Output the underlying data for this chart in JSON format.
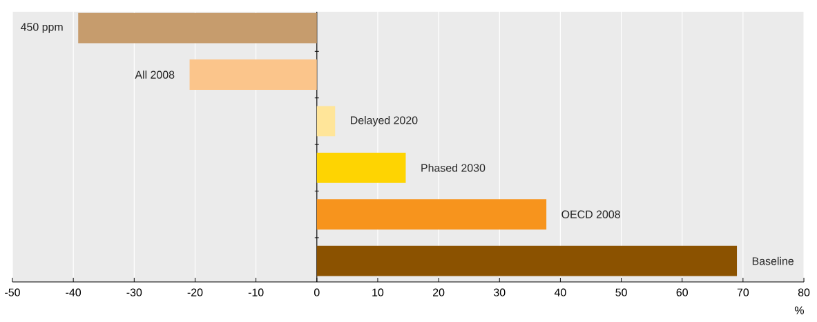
{
  "chart_data": {
    "type": "bar",
    "orientation": "horizontal",
    "xlabel": "%",
    "categories": [
      "450 ppm",
      "All 2008",
      "Delayed 2020",
      "Phased 2030",
      "OECD 2008",
      "Baseline"
    ],
    "values": [
      -39.2,
      -20.9,
      3.0,
      14.6,
      37.7,
      69.0
    ],
    "colors": [
      "#c69c6d",
      "#fbc58b",
      "#ffe599",
      "#fed402",
      "#f7941d",
      "#8b5200"
    ],
    "xlim": [
      -50,
      80
    ],
    "xticks": [
      -50,
      -40,
      -30,
      -20,
      -10,
      0,
      10,
      20,
      30,
      40,
      50,
      60,
      70,
      80
    ],
    "grid": "x",
    "tick_labels": "x"
  }
}
